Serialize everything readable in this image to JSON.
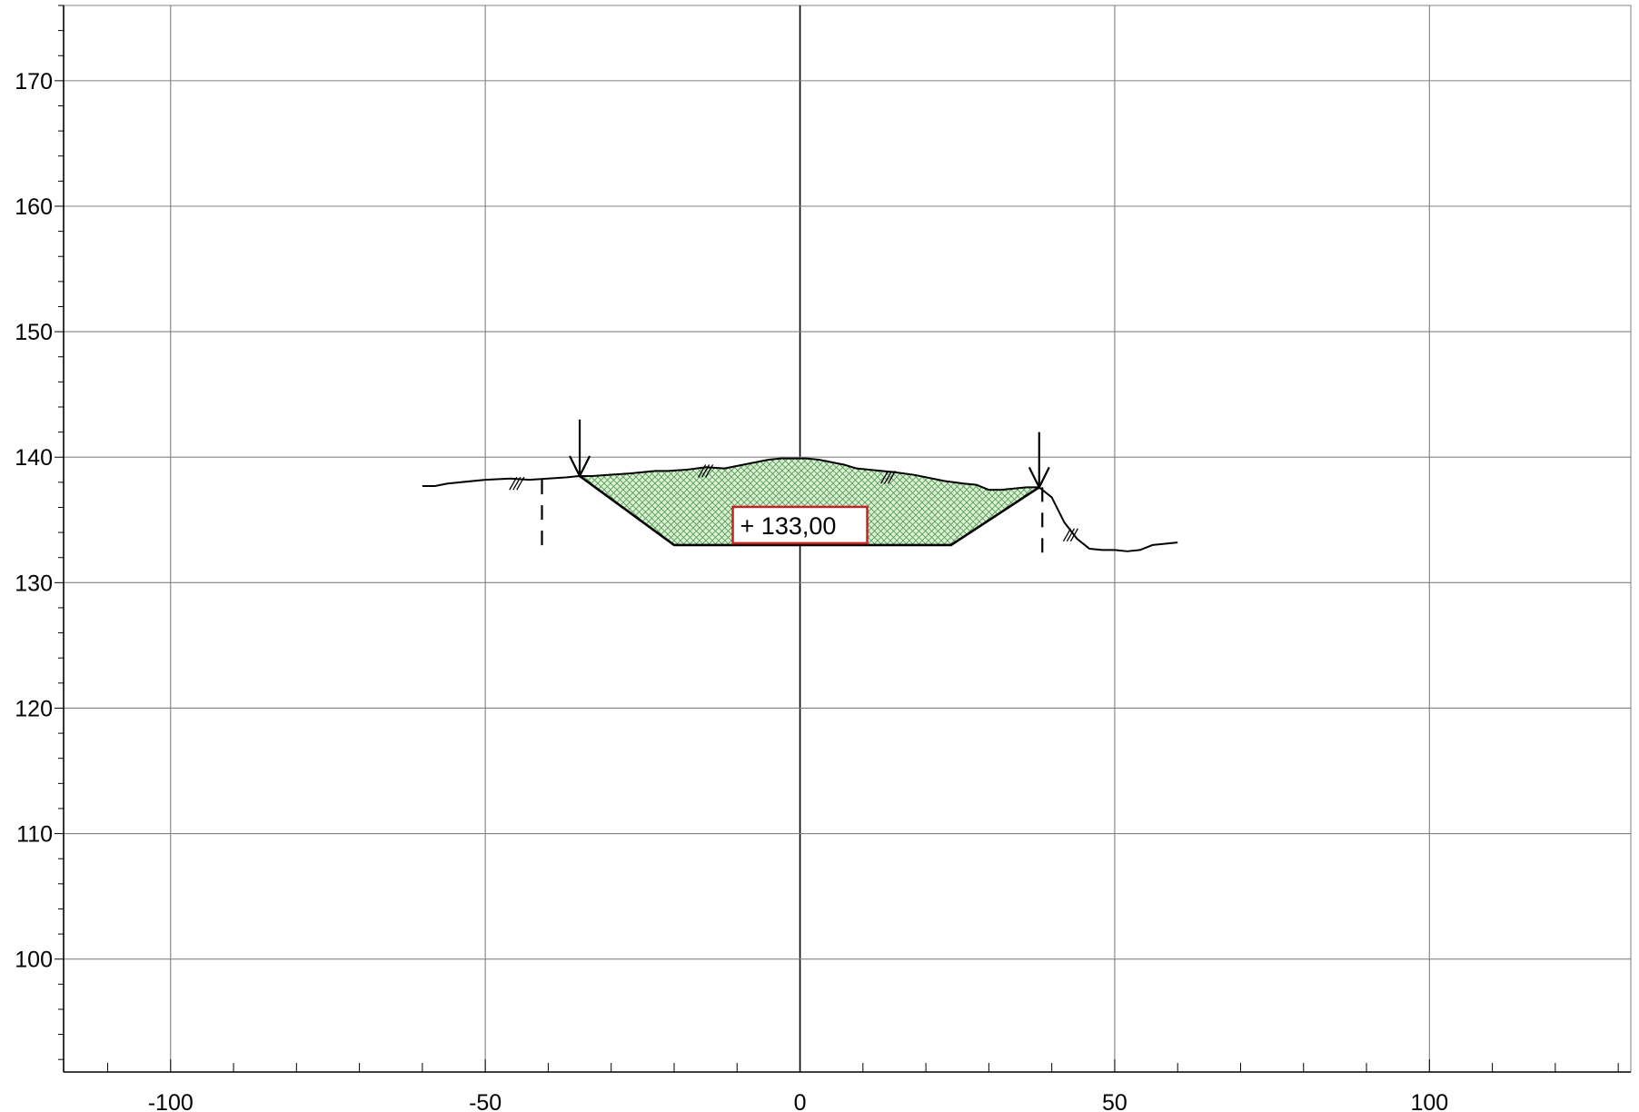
{
  "chart_data": {
    "type": "line",
    "title": "",
    "xlabel": "",
    "ylabel": "",
    "xlim": [
      -117,
      132
    ],
    "ylim": [
      91,
      176
    ],
    "grid": true,
    "x_major_ticks": [
      -100,
      -50,
      0,
      50,
      100
    ],
    "x_tick_labels": [
      "-100",
      "-50",
      "0",
      "50",
      "100"
    ],
    "x_minor_step": 10,
    "y_major_ticks": [
      100,
      110,
      120,
      130,
      140,
      150,
      160,
      170
    ],
    "y_tick_labels": [
      "100",
      "110",
      "120",
      "130",
      "140",
      "150",
      "160",
      "170"
    ],
    "y_minor_step": 2,
    "colors": {
      "grid": "#808080",
      "axis": "#000000",
      "line": "#000000",
      "fill_hatch": "#4a9a4a",
      "fill_background": "#dff0d8",
      "label_border": "#cc2020"
    },
    "series": [
      {
        "role": "ground-profile",
        "x": [
          -60,
          -58,
          -56,
          -50,
          -46,
          -43,
          -40,
          -37,
          -35,
          -33,
          -30,
          -27,
          -25,
          -23,
          -21,
          -18,
          -15,
          -12,
          -10,
          -8,
          -5,
          -3,
          -1,
          1,
          3,
          5,
          7,
          9,
          11,
          13,
          15,
          18,
          20,
          23,
          26,
          28,
          30,
          32,
          34,
          36,
          38,
          40,
          42,
          44,
          46,
          48,
          50,
          52,
          54,
          56,
          58,
          60
        ],
        "y": [
          137.7,
          137.7,
          137.9,
          138.2,
          138.3,
          138.2,
          138.3,
          138.4,
          138.5,
          138.5,
          138.6,
          138.7,
          138.8,
          138.9,
          138.9,
          139.0,
          139.2,
          139.1,
          139.3,
          139.5,
          139.8,
          139.9,
          139.9,
          139.9,
          139.8,
          139.6,
          139.4,
          139.1,
          139.0,
          138.9,
          138.8,
          138.6,
          138.4,
          138.1,
          137.9,
          137.8,
          137.4,
          137.4,
          137.5,
          137.6,
          137.6,
          136.8,
          134.8,
          133.5,
          132.7,
          132.6,
          132.6,
          132.5,
          132.6,
          133.0,
          133.1,
          133.2
        ]
      },
      {
        "role": "excavation-profile",
        "x": [
          -35,
          -20,
          24,
          38
        ],
        "y": [
          138.5,
          133.0,
          133.0,
          137.6
        ]
      }
    ],
    "annotations": {
      "formation_level": {
        "x": 0,
        "y": 133.0,
        "label": "+ 133,00"
      },
      "arrows": [
        {
          "x": -35,
          "y_start": 143.0,
          "y_end": 138.5
        },
        {
          "x": 38,
          "y_start": 142.0,
          "y_end": 137.6
        }
      ],
      "dashed_verticals": [
        {
          "x": -41,
          "y_top": 138.2,
          "y_bottom": 132.2
        },
        {
          "x": 38.5,
          "y_top": 137.6,
          "y_bottom": 132.4
        }
      ],
      "slope_marks": [
        {
          "x": -45,
          "y": 137.9
        },
        {
          "x": -15,
          "y": 138.9
        },
        {
          "x": 14,
          "y": 138.4
        },
        {
          "x": 43,
          "y": 133.8
        }
      ]
    }
  }
}
